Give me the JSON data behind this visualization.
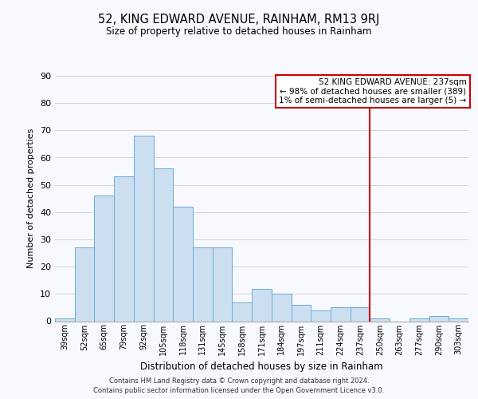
{
  "title": "52, KING EDWARD AVENUE, RAINHAM, RM13 9RJ",
  "subtitle": "Size of property relative to detached houses in Rainham",
  "xlabel": "Distribution of detached houses by size in Rainham",
  "ylabel": "Number of detached properties",
  "bar_labels": [
    "39sqm",
    "52sqm",
    "65sqm",
    "79sqm",
    "92sqm",
    "105sqm",
    "118sqm",
    "131sqm",
    "145sqm",
    "158sqm",
    "171sqm",
    "184sqm",
    "197sqm",
    "211sqm",
    "224sqm",
    "237sqm",
    "250sqm",
    "263sqm",
    "277sqm",
    "290sqm",
    "303sqm"
  ],
  "bar_values": [
    1,
    27,
    46,
    53,
    68,
    56,
    42,
    27,
    27,
    7,
    12,
    10,
    6,
    4,
    5,
    5,
    1,
    0,
    1,
    2,
    1
  ],
  "bar_color": "#ccdff0",
  "bar_edge_color": "#6aadd5",
  "vline_index": 15,
  "vline_color": "#cc0000",
  "annotation_title": "52 KING EDWARD AVENUE: 237sqm",
  "annotation_line1": "← 98% of detached houses are smaller (389)",
  "annotation_line2": "1% of semi-detached houses are larger (5) →",
  "annotation_box_color": "#ffffff",
  "annotation_box_edge": "#cc0000",
  "ylim": [
    0,
    90
  ],
  "yticks": [
    0,
    10,
    20,
    30,
    40,
    50,
    60,
    70,
    80,
    90
  ],
  "footer1": "Contains HM Land Registry data © Crown copyright and database right 2024.",
  "footer2": "Contains public sector information licensed under the Open Government Licence v3.0.",
  "bg_color": "#f8f8ff"
}
